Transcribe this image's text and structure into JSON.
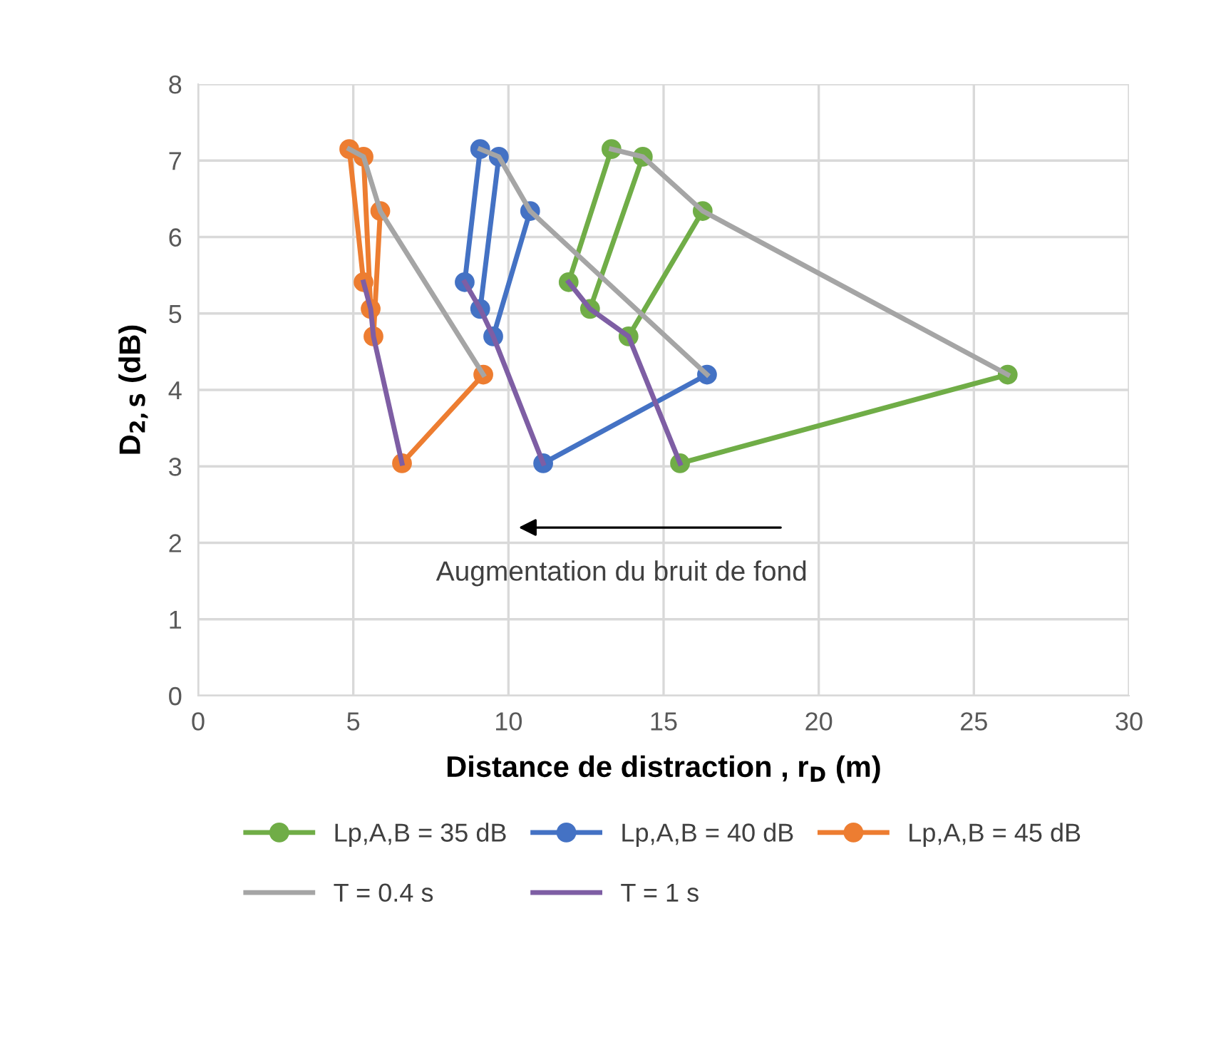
{
  "chart_data": {
    "type": "line",
    "xlabel": "Distance de distraction , r$_{D}$ (m)",
    "ylabel": "D$_{2,S}$ (dB)",
    "xlim": [
      0,
      30
    ],
    "xticks": [
      0,
      5,
      10,
      15,
      20,
      25,
      30
    ],
    "ylim": [
      0,
      8
    ],
    "yticks": [
      0,
      1,
      2,
      3,
      4,
      5,
      6,
      7,
      8
    ],
    "grid": true,
    "legend": "bottom",
    "annotations": [
      "Augmentation du bruit de fond"
    ],
    "series": [
      {
        "name": "Lp,A,B = 35 dB",
        "color": "#70ad47",
        "marker": "circle",
        "x": [
          15.53,
          26.09,
          null,
          13.87,
          16.26,
          null,
          12.63,
          14.33,
          null,
          11.94,
          13.32
        ],
        "values": [
          3.04,
          4.2,
          null,
          4.7,
          6.34,
          null,
          5.06,
          7.05,
          null,
          5.41,
          7.15
        ]
      },
      {
        "name": "Lp,A,B = 40 dB",
        "color": "#4472c4",
        "marker": "circle",
        "x": [
          11.12,
          16.4,
          null,
          9.51,
          10.7,
          null,
          9.09,
          9.69,
          null,
          8.59,
          9.09
        ],
        "values": [
          3.04,
          4.2,
          null,
          4.7,
          6.34,
          null,
          5.06,
          7.05,
          null,
          5.41,
          7.15
        ]
      },
      {
        "name": "Lp,A,B = 45 dB",
        "color": "#ed7d31",
        "marker": "circle",
        "x": [
          6.57,
          9.19,
          null,
          5.65,
          5.87,
          null,
          5.56,
          5.33,
          null,
          5.33,
          4.87
        ],
        "values": [
          3.04,
          4.2,
          null,
          4.7,
          6.34,
          null,
          5.06,
          7.05,
          null,
          5.41,
          7.15
        ]
      },
      {
        "name": "T = 0.4 s",
        "color": "#a5a5a5",
        "marker": "none",
        "x": [
          4.87,
          5.33,
          5.87,
          9.19,
          null,
          9.09,
          9.69,
          10.7,
          16.4,
          null,
          13.32,
          14.33,
          16.26,
          26.09
        ],
        "values": [
          7.15,
          7.05,
          6.34,
          4.2,
          null,
          7.15,
          7.05,
          6.34,
          4.2,
          null,
          7.15,
          7.05,
          6.34,
          4.2
        ]
      },
      {
        "name": "T = 1 s",
        "color": "#7e5ea4",
        "marker": "none",
        "x": [
          5.33,
          5.56,
          5.65,
          6.57,
          null,
          8.59,
          9.09,
          9.51,
          11.12,
          null,
          11.94,
          12.63,
          13.87,
          15.53
        ],
        "values": [
          5.41,
          5.06,
          4.7,
          3.04,
          null,
          5.41,
          5.06,
          4.7,
          3.04,
          null,
          5.41,
          5.06,
          4.7,
          3.04
        ]
      }
    ]
  }
}
